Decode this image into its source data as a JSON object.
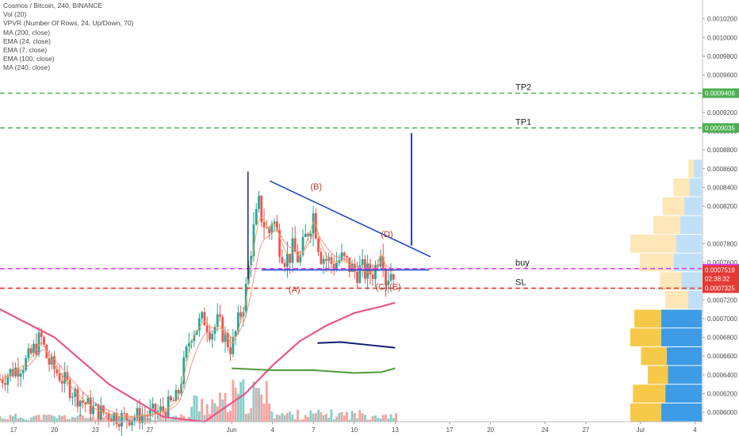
{
  "legend": {
    "title": "Cosmos / Bitcoin, 240, BINANCE",
    "indicators": [
      "Vol (20)",
      "VPVR (Number Of Rows, 24, Up/Down, 70)",
      "MA (200, close)",
      "EMA (24, close)",
      "EMA (7, close)",
      "EMA (100, close)",
      "MA (240, close)"
    ]
  },
  "colors": {
    "up": "#26a69a",
    "down": "#ef5350",
    "tp": "#4caf50",
    "buy": "#e040fb",
    "sl": "#e53935",
    "trend": "#1e40c8",
    "ma200": "#e8568a",
    "ema100": "#4f9a3c",
    "ma240": "#0d1b6b",
    "ema24": "#f28b82",
    "ema7": "#f6a04d",
    "vp_up": "#bfe0f7",
    "vp_down": "#fde7b8",
    "vp_up_strong": "#3e9be6",
    "vp_down_strong": "#f7c948"
  },
  "chart_data": {
    "type": "candlestick",
    "title": "Cosmos / Bitcoin, 240, BINANCE",
    "y_axis": {
      "min": 0.00059,
      "max": 0.00104,
      "position": "right",
      "ticks": [
        "0.0010200",
        "0.0010000",
        "0.0009800",
        "0.0009600",
        "0.0009200",
        "0.0009000",
        "0.0008800",
        "0.0008600",
        "0.0008400",
        "0.0008200",
        "0.0007800",
        "0.0007600",
        "0.0007200",
        "0.0007000",
        "0.0006800",
        "0.0006600",
        "0.0006400",
        "0.0006200",
        "0.0006000"
      ],
      "tick_values": [
        0.00102,
        0.001,
        0.00098,
        0.00096,
        0.00092,
        0.0009,
        0.00088,
        0.00086,
        0.00084,
        0.00082,
        0.00078,
        0.00076,
        0.00072,
        0.0007,
        0.00068,
        0.00066,
        0.00064,
        0.00062,
        0.0006
      ]
    },
    "x_axis": {
      "labels": [
        "17",
        "20",
        "23",
        "27",
        "Jun",
        "4",
        "7",
        "10",
        "13",
        "17",
        "20",
        "24",
        "27",
        "Jul",
        "4"
      ],
      "days": [
        -15,
        -12,
        -9,
        -5,
        1,
        4,
        7,
        10,
        13,
        17,
        20,
        24,
        27,
        31,
        35
      ],
      "min_day": -16,
      "max_day": 35.5
    },
    "price_series": {
      "days": [
        -16,
        -14,
        -13,
        -12.5,
        -11,
        -10,
        -9,
        -8,
        -7,
        -6,
        -5,
        -4,
        -3,
        -2,
        -1,
        -0.5,
        0,
        0.5,
        1,
        2,
        2.5,
        3,
        3.3,
        3.7,
        4,
        4.5,
        5,
        5.5,
        6,
        6.5,
        7,
        7.5,
        8,
        8.5,
        9,
        9.5,
        10,
        10.5,
        11,
        11.5,
        12,
        12.3,
        12.6,
        13
      ],
      "prices": [
        0.000635,
        0.000655,
        0.00068,
        0.000655,
        0.000628,
        0.000612,
        0.000602,
        0.000598,
        0.000594,
        0.000596,
        0.000598,
        0.000602,
        0.000615,
        0.000685,
        0.0007,
        0.000686,
        0.000696,
        0.00068,
        0.000668,
        0.000725,
        0.000785,
        0.00082,
        0.000805,
        0.000788,
        0.00081,
        0.00078,
        0.000763,
        0.000773,
        0.000762,
        0.00079,
        0.000812,
        0.00077,
        0.000762,
        0.000758,
        0.000764,
        0.000758,
        0.00075,
        0.000752,
        0.000748,
        0.000752,
        0.000782,
        0.000742,
        0.00075,
        0.000752
      ]
    },
    "volume_note": "volume bars along bottom of pane",
    "ma200": {
      "days": [
        -16,
        -12,
        -8,
        -4,
        -1,
        2,
        4,
        6,
        8,
        10,
        12,
        13
      ],
      "values": [
        0.00071,
        0.00068,
        0.00063,
        0.000595,
        0.00059,
        0.00062,
        0.00065,
        0.000676,
        0.000693,
        0.000706,
        0.000713,
        0.000717
      ]
    },
    "ema100": {
      "days": [
        1,
        4,
        7,
        10,
        12,
        13
      ],
      "values": [
        0.000647,
        0.000645,
        0.000645,
        0.000642,
        0.000643,
        0.000647
      ]
    },
    "ma240": {
      "days": [
        7.3,
        9,
        11,
        13
      ],
      "values": [
        0.000674,
        0.000675,
        0.000672,
        0.000669
      ]
    },
    "trendlines": [
      {
        "name": "upper",
        "from": [
          3.8,
          0.000847
        ],
        "to": [
          15.6,
          0.000766
        ]
      },
      {
        "name": "lower",
        "from": [
          3.2,
          0.000752
        ],
        "to": [
          15.5,
          0.000752
        ]
      }
    ],
    "target_line": {
      "day": 14.2,
      "from": 0.000778,
      "to": 0.000898
    },
    "horizontal_levels": [
      {
        "label": "TP2",
        "value": 0.0009406,
        "tag": "0.0009406",
        "style": "dashed",
        "color": "#4caf50"
      },
      {
        "label": "TP1",
        "value": 0.0009035,
        "tag": "0.0009035",
        "style": "dashed",
        "color": "#4caf50"
      },
      {
        "label": "buy",
        "value": 0.0007534,
        "tag": "0.0007534",
        "style": "dashed",
        "color": "#e040fb"
      },
      {
        "label": "SL",
        "value": 0.0007325,
        "tag": "0.0007325",
        "style": "dashed",
        "color": "#e53935"
      }
    ],
    "price_tags": [
      {
        "text": "0.0007519",
        "value": 0.0007519,
        "color": "#e53935"
      },
      {
        "text": "02:38:32",
        "value": 0.0007425,
        "color": "#e53935"
      }
    ],
    "wave_labels": [
      {
        "label": "(A)",
        "day": 5.6,
        "value": 0.000728
      },
      {
        "label": "(B)",
        "day": 7.2,
        "value": 0.000838
      },
      {
        "label": "(C)",
        "day": 12.0,
        "value": 0.000731
      },
      {
        "label": "(D)",
        "day": 12.4,
        "value": 0.000787
      },
      {
        "label": "(E)",
        "day": 13.0,
        "value": 0.000731
      }
    ],
    "volume_profile": {
      "note": "horizontal histogram on right",
      "rows": [
        {
          "value": 0.00086,
          "up": 0.6,
          "down": 0.4
        },
        {
          "value": 0.00084,
          "up": 0.9,
          "down": 1.2
        },
        {
          "value": 0.00082,
          "up": 1.3,
          "down": 1.6
        },
        {
          "value": 0.0008,
          "up": 1.6,
          "down": 2.0
        },
        {
          "value": 0.00078,
          "up": 1.9,
          "down": 3.4
        },
        {
          "value": 0.00076,
          "up": 2.1,
          "down": 2.5
        },
        {
          "value": 0.00074,
          "up": 1.5,
          "down": 1.6
        },
        {
          "value": 0.00072,
          "up": 1.0,
          "down": 1.7
        },
        {
          "value": 0.0007,
          "up": 3.0,
          "down": 2.0
        },
        {
          "value": 0.00068,
          "up": 3.0,
          "down": 2.3
        },
        {
          "value": 0.00066,
          "up": 2.6,
          "down": 1.9
        },
        {
          "value": 0.00064,
          "up": 2.5,
          "down": 1.5
        },
        {
          "value": 0.00062,
          "up": 2.7,
          "down": 2.4
        },
        {
          "value": 0.0006,
          "up": 3.0,
          "down": 2.3
        }
      ]
    },
    "legend": "top-left",
    "grid": false
  }
}
